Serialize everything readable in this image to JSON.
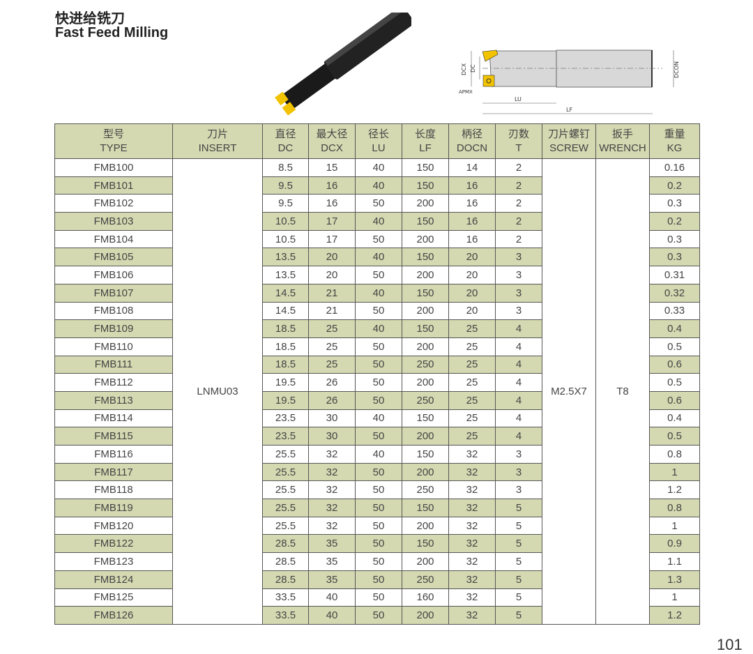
{
  "title_cn": "快进给铣刀",
  "title_en": "Fast Feed Milling",
  "diagram_labels": {
    "dcx": "DCX",
    "dc": "DC",
    "apmx": "APMX",
    "lu": "LU",
    "lf": "LF",
    "docn": "DCON"
  },
  "colors": {
    "stripe": "#d4d9b1",
    "insert": "#f2c300",
    "tool": "#1a1a1a"
  },
  "columns": [
    {
      "cn": "型号",
      "en": "TYPE"
    },
    {
      "cn": "刀片",
      "en": "INSERT"
    },
    {
      "cn": "直径",
      "en": "DC"
    },
    {
      "cn": "最大径",
      "en": "DCX"
    },
    {
      "cn": "径长",
      "en": "LU"
    },
    {
      "cn": "长度",
      "en": "LF"
    },
    {
      "cn": "柄径",
      "en": "DOCN"
    },
    {
      "cn": "刃数",
      "en": "T"
    },
    {
      "cn": "刀片螺钉",
      "en": "SCREW"
    },
    {
      "cn": "扳手",
      "en": "WRENCH"
    },
    {
      "cn": "重量",
      "en": "KG"
    }
  ],
  "merged": {
    "insert": "LNMU03",
    "screw": "M2.5X7",
    "wrench": "T8"
  },
  "rows": [
    [
      "FMB100",
      "8.5",
      "15",
      "40",
      "150",
      "14",
      "2",
      "0.16"
    ],
    [
      "FMB101",
      "9.5",
      "16",
      "40",
      "150",
      "16",
      "2",
      "0.2"
    ],
    [
      "FMB102",
      "9.5",
      "16",
      "50",
      "200",
      "16",
      "2",
      "0.3"
    ],
    [
      "FMB103",
      "10.5",
      "17",
      "40",
      "150",
      "16",
      "2",
      "0.2"
    ],
    [
      "FMB104",
      "10.5",
      "17",
      "50",
      "200",
      "16",
      "2",
      "0.3"
    ],
    [
      "FMB105",
      "13.5",
      "20",
      "40",
      "150",
      "20",
      "3",
      "0.3"
    ],
    [
      "FMB106",
      "13.5",
      "20",
      "50",
      "200",
      "20",
      "3",
      "0.31"
    ],
    [
      "FMB107",
      "14.5",
      "21",
      "40",
      "150",
      "20",
      "3",
      "0.32"
    ],
    [
      "FMB108",
      "14.5",
      "21",
      "50",
      "200",
      "20",
      "3",
      "0.33"
    ],
    [
      "FMB109",
      "18.5",
      "25",
      "40",
      "150",
      "25",
      "4",
      "0.4"
    ],
    [
      "FMB110",
      "18.5",
      "25",
      "50",
      "200",
      "25",
      "4",
      "0.5"
    ],
    [
      "FMB111",
      "18.5",
      "25",
      "50",
      "250",
      "25",
      "4",
      "0.6"
    ],
    [
      "FMB112",
      "19.5",
      "26",
      "50",
      "200",
      "25",
      "4",
      "0.5"
    ],
    [
      "FMB113",
      "19.5",
      "26",
      "50",
      "250",
      "25",
      "4",
      "0.6"
    ],
    [
      "FMB114",
      "23.5",
      "30",
      "40",
      "150",
      "25",
      "4",
      "0.4"
    ],
    [
      "FMB115",
      "23.5",
      "30",
      "50",
      "200",
      "25",
      "4",
      "0.5"
    ],
    [
      "FMB116",
      "25.5",
      "32",
      "40",
      "150",
      "32",
      "3",
      "0.8"
    ],
    [
      "FMB117",
      "25.5",
      "32",
      "50",
      "200",
      "32",
      "3",
      "1"
    ],
    [
      "FMB118",
      "25.5",
      "32",
      "50",
      "250",
      "32",
      "3",
      "1.2"
    ],
    [
      "FMB119",
      "25.5",
      "32",
      "50",
      "150",
      "32",
      "5",
      "0.8"
    ],
    [
      "FMB120",
      "25.5",
      "32",
      "50",
      "200",
      "32",
      "5",
      "1"
    ],
    [
      "FMB122",
      "28.5",
      "35",
      "50",
      "150",
      "32",
      "5",
      "0.9"
    ],
    [
      "FMB123",
      "28.5",
      "35",
      "50",
      "200",
      "32",
      "5",
      "1.1"
    ],
    [
      "FMB124",
      "28.5",
      "35",
      "50",
      "250",
      "32",
      "5",
      "1.3"
    ],
    [
      "FMB125",
      "33.5",
      "40",
      "50",
      "160",
      "32",
      "5",
      "1"
    ],
    [
      "FMB126",
      "33.5",
      "40",
      "50",
      "200",
      "32",
      "5",
      "1.2"
    ]
  ],
  "page_number": "101"
}
